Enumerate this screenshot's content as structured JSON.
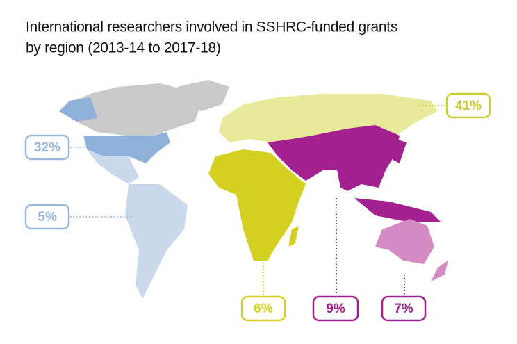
{
  "title": [
    "International researchers involved in SSHRC-funded grants",
    "by region (2013-14 to 2017-18)"
  ],
  "regions": [
    {
      "label": "41%",
      "color": "#e9e99c",
      "text_color": "#cccc33"
    },
    {
      "label": "32%",
      "color": "#8fb0d9",
      "text_color": "#9bb7dc"
    },
    {
      "label": "5%",
      "color": "#c9d8eb",
      "text_color": "#9bb7dc"
    },
    {
      "label": "6%",
      "color": "#d4d022",
      "text_color": "#d4d022"
    },
    {
      "label": "9%",
      "color": "#a3218e",
      "text_color": "#a3218e"
    },
    {
      "label": "7%",
      "color": "#d48bc4",
      "text_color": "#a3218e"
    }
  ],
  "other_color": "#c9c9c9"
}
